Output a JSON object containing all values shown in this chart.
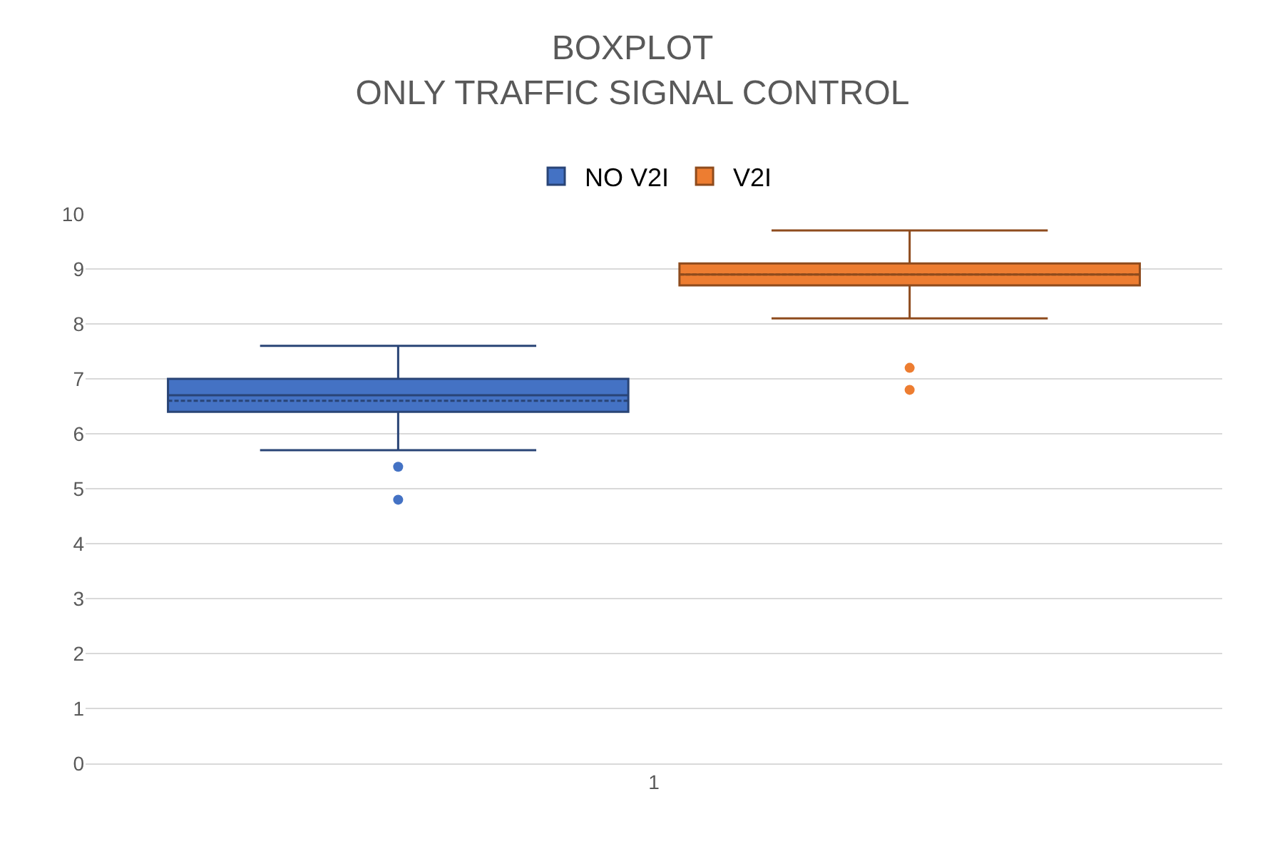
{
  "chart_data": {
    "type": "box",
    "title": "BOXPLOT\nONLY TRAFFIC SIGNAL CONTROL",
    "categories": [
      "1"
    ],
    "series": [
      {
        "name": "NO V2I",
        "color": "#4472c4",
        "boxes": [
          {
            "low": 5.7,
            "q1": 6.4,
            "median": 6.7,
            "q3": 7.0,
            "high": 7.6,
            "mean": 6.6,
            "outliers": [
              5.4,
              4.8
            ]
          }
        ]
      },
      {
        "name": "V2I",
        "color": "#ed7d31",
        "boxes": [
          {
            "low": 8.1,
            "q1": 8.7,
            "median": 8.9,
            "q3": 9.1,
            "high": 9.7,
            "mean": 8.9,
            "outliers": [
              7.2,
              6.8
            ]
          }
        ]
      }
    ],
    "ylim": [
      0,
      10
    ],
    "yticks": [
      0,
      1,
      2,
      3,
      4,
      5,
      6,
      7,
      8,
      9,
      10
    ],
    "grid": "y",
    "legend": "top"
  }
}
